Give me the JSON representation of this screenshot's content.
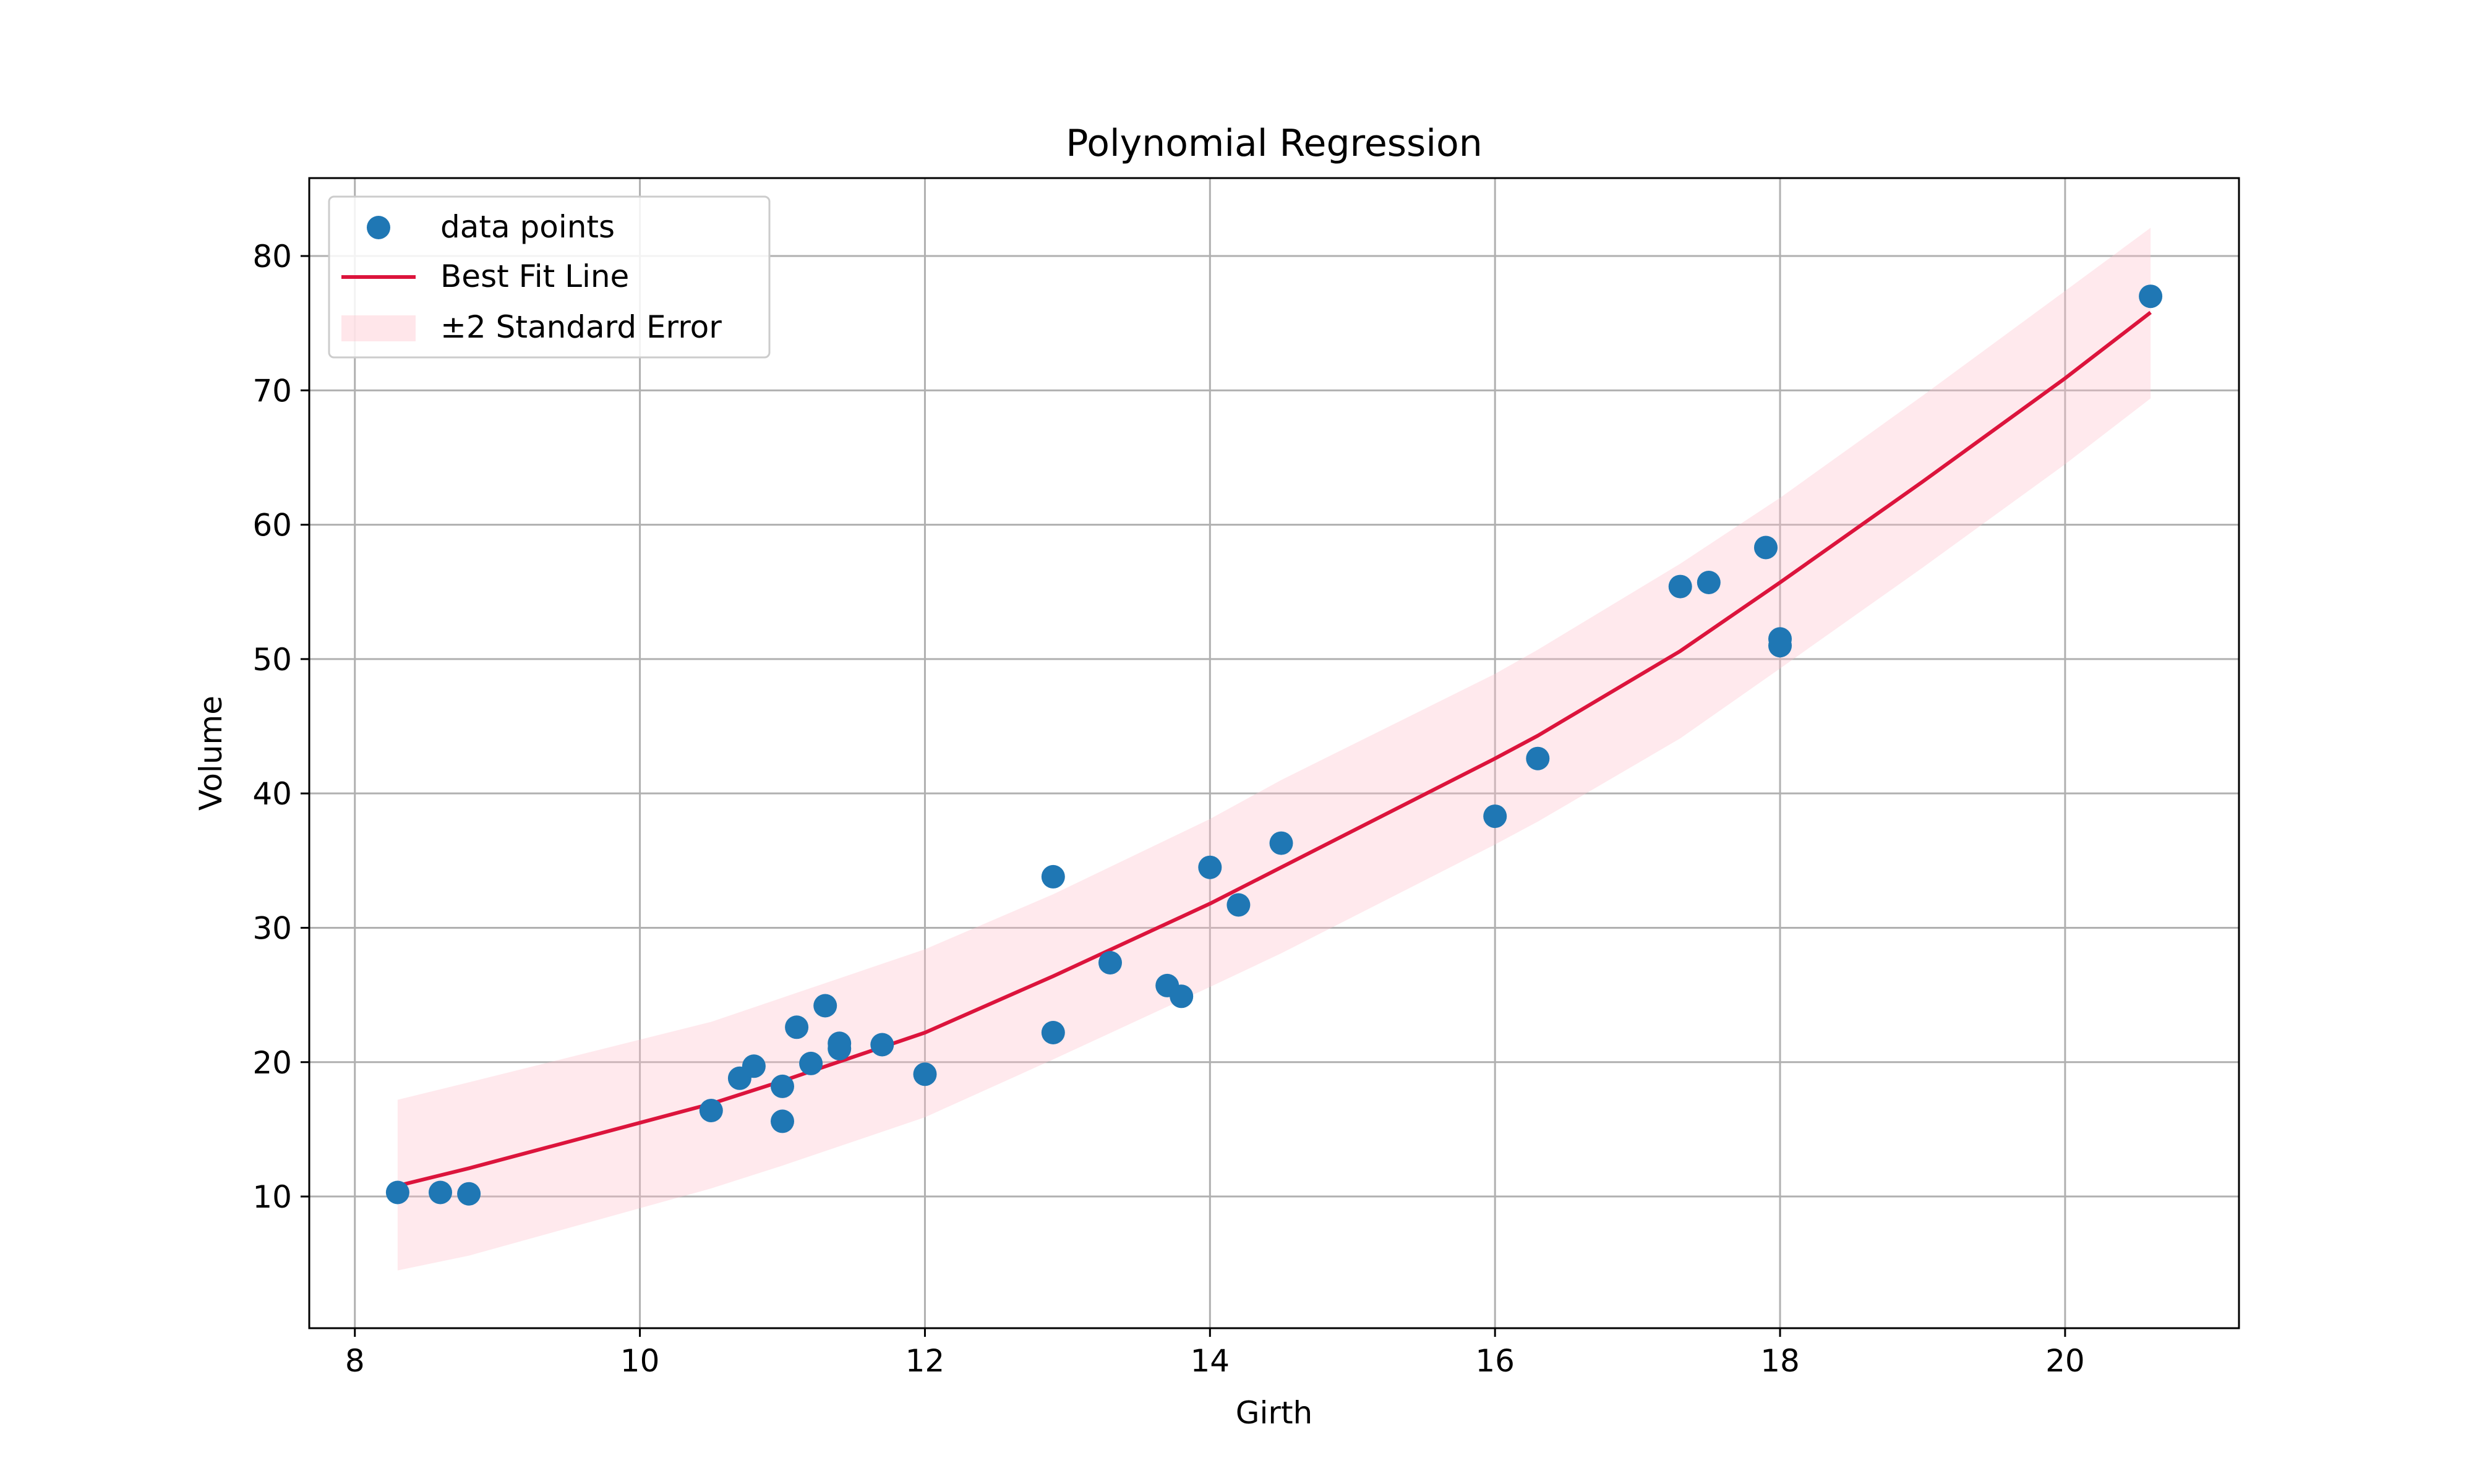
{
  "chart_data": {
    "type": "scatter",
    "title": "Polynomial Regression",
    "xlabel": "Girth",
    "ylabel": "Volume",
    "xlim": [
      7.68,
      21.22
    ],
    "ylim": [
      0.2,
      85.8
    ],
    "xticks": [
      8,
      10,
      12,
      14,
      16,
      18,
      20
    ],
    "yticks": [
      10,
      20,
      30,
      40,
      50,
      60,
      70,
      80
    ],
    "grid": true,
    "legend_position": "upper-left",
    "legend": [
      {
        "label": "data points",
        "kind": "point"
      },
      {
        "label": "Best Fit Line",
        "kind": "line"
      },
      {
        "label": "±2 Standard Error",
        "kind": "band"
      }
    ],
    "colors": {
      "points": "#1f77b4",
      "fit_line": "#dc143c",
      "band": "#ffc0cb",
      "grid": "#b0b0b0"
    },
    "points": {
      "x": [
        8.3,
        8.6,
        8.8,
        10.5,
        10.7,
        10.8,
        11.0,
        11.0,
        11.1,
        11.2,
        11.3,
        11.4,
        11.4,
        11.7,
        12.0,
        12.9,
        12.9,
        13.3,
        13.7,
        13.8,
        14.0,
        14.2,
        14.5,
        16.0,
        16.3,
        17.3,
        17.5,
        17.9,
        18.0,
        18.0,
        20.6
      ],
      "y": [
        10.3,
        10.3,
        10.2,
        16.4,
        18.8,
        19.7,
        15.6,
        18.2,
        22.6,
        19.9,
        24.2,
        21.0,
        21.4,
        21.3,
        19.1,
        22.2,
        33.8,
        27.4,
        25.7,
        24.9,
        34.5,
        31.7,
        36.3,
        38.3,
        42.6,
        55.4,
        55.7,
        58.3,
        51.5,
        51.0,
        77.0
      ]
    },
    "fit_line": {
      "x": [
        8.3,
        8.8,
        10.5,
        11.0,
        12.0,
        12.9,
        14.0,
        14.5,
        16.0,
        16.3,
        17.3,
        18.0,
        19.0,
        20.0,
        20.6
      ],
      "y": [
        10.8,
        12.1,
        16.9,
        18.6,
        22.2,
        26.4,
        31.8,
        34.5,
        42.6,
        44.3,
        50.6,
        55.7,
        63.2,
        70.9,
        75.8
      ]
    },
    "band": {
      "upper": [
        17.2,
        18.5,
        23.0,
        24.8,
        28.4,
        32.5,
        38.1,
        41.0,
        48.9,
        50.7,
        57.1,
        62.0,
        69.6,
        77.4,
        82.1
      ],
      "lower": [
        4.5,
        5.6,
        10.6,
        12.3,
        15.9,
        20.2,
        25.6,
        28.1,
        36.2,
        37.9,
        44.1,
        49.3,
        56.8,
        64.5,
        69.4
      ]
    }
  }
}
